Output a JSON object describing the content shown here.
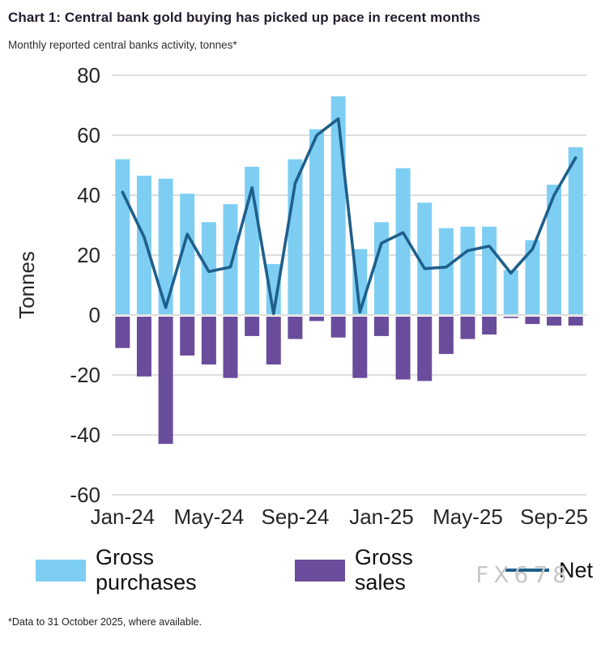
{
  "page": {
    "title": "Chart 1: Central bank gold buying has picked up pace in recent months",
    "subtitle": "Monthly reported central banks activity, tonnes*",
    "footnote": "*Data to 31 October 2025, where available.",
    "watermark": "FX678"
  },
  "colors": {
    "purchases": "#7ecef4",
    "sales": "#6a4c9c",
    "net": "#1f5f8b",
    "grid": "#d4d4d4",
    "tick_text": "#262626"
  },
  "chart_data": {
    "type": "bar",
    "title": "Chart 1: Central bank gold buying has picked up pace in recent months",
    "subtitle": "Monthly reported central banks activity, tonnes*",
    "ylabel": "Tonnes",
    "xlabel": "",
    "ylim": [
      -60,
      80
    ],
    "yticks": [
      80,
      60,
      40,
      20,
      0,
      -20,
      -40,
      -60
    ],
    "grid": true,
    "legend_position": "bottom",
    "categories": [
      "Jan-24",
      "Feb-24",
      "Mar-24",
      "Apr-24",
      "May-24",
      "Jun-24",
      "Jul-24",
      "Aug-24",
      "Sep-24",
      "Oct-24",
      "Nov-24",
      "Dec-24",
      "Jan-25",
      "Feb-25",
      "Mar-25",
      "Apr-25",
      "May-25",
      "Jun-25",
      "Jul-25",
      "Aug-25",
      "Sep-25",
      "Oct-25"
    ],
    "xtick_labels": [
      "Jan-24",
      "May-24",
      "Sep-24",
      "Jan-25",
      "May-25",
      "Sep-25"
    ],
    "xtick_positions": [
      0,
      4,
      8,
      12,
      16,
      20
    ],
    "series": [
      {
        "name": "Gross purchases",
        "type": "bar",
        "color": "#7ecef4",
        "values": [
          52,
          46.5,
          45.5,
          40.5,
          31,
          37,
          49.5,
          17,
          52,
          62,
          73,
          22,
          31,
          49,
          37.5,
          29,
          29.5,
          29.5,
          15,
          25,
          43.5,
          56
        ]
      },
      {
        "name": "Gross sales",
        "type": "bar",
        "color": "#6a4c9c",
        "values": [
          -11,
          -20.5,
          -43,
          -13.5,
          -16.5,
          -21,
          -7,
          -16.5,
          -8,
          -2,
          -7.5,
          -21,
          -7,
          -21.5,
          -22,
          -13,
          -8,
          -6.5,
          -1,
          -3,
          -3.5,
          -3.5
        ]
      },
      {
        "name": "Net",
        "type": "line",
        "color": "#1f5f8b",
        "values": [
          41,
          26,
          2.5,
          27,
          14.5,
          16,
          42.5,
          0.5,
          44,
          60,
          65.5,
          1,
          24,
          27.5,
          15.5,
          16,
          21.5,
          23,
          14,
          22,
          40,
          52.5
        ]
      }
    ]
  }
}
